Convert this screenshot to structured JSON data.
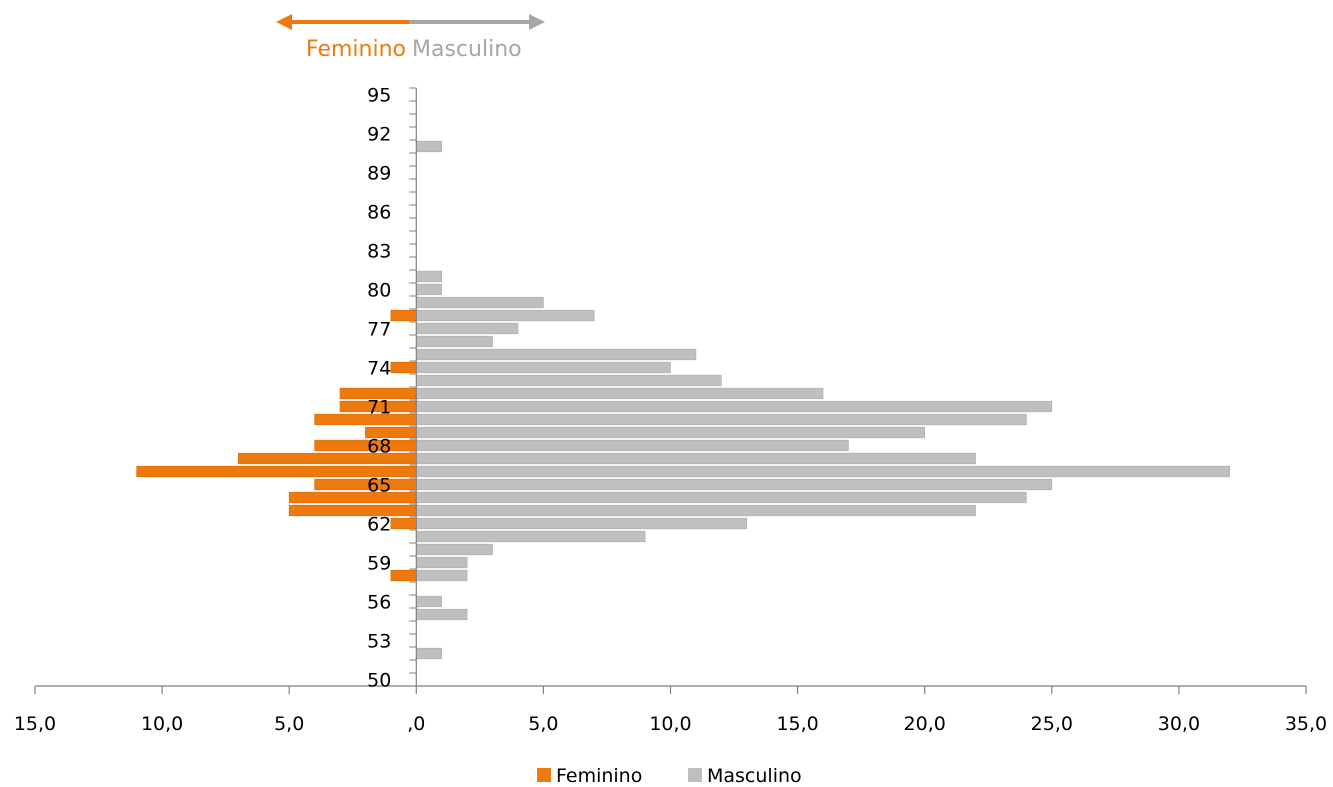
{
  "chart_data": {
    "type": "bar",
    "orientation": "horizontal-population-pyramid",
    "header": {
      "female_label": "Feminino",
      "male_label": "Masculino"
    },
    "ages": [
      95,
      94,
      93,
      92,
      91,
      90,
      89,
      88,
      87,
      86,
      85,
      84,
      83,
      82,
      81,
      80,
      79,
      78,
      77,
      76,
      75,
      74,
      73,
      72,
      71,
      70,
      69,
      68,
      67,
      66,
      65,
      64,
      63,
      62,
      61,
      60,
      59,
      58,
      57,
      56,
      55,
      54,
      53,
      52,
      51,
      50
    ],
    "series": [
      {
        "name": "Feminino",
        "color": "#EE7A0E",
        "values": [
          0,
          0,
          0,
          0,
          0,
          0,
          0,
          0,
          0,
          0,
          0,
          0,
          0,
          0,
          0,
          0,
          0,
          1,
          0,
          0,
          0,
          1,
          0,
          3,
          3,
          4,
          2,
          4,
          7,
          11,
          4,
          5,
          5,
          1,
          0,
          0,
          0,
          1,
          0,
          0,
          0,
          0,
          0,
          0,
          0,
          0
        ]
      },
      {
        "name": "Masculino",
        "color": "#BFBFBF",
        "values": [
          0,
          0,
          0,
          0,
          1,
          0,
          0,
          0,
          0,
          0,
          0,
          0,
          0,
          0,
          1,
          1,
          5,
          7,
          4,
          3,
          11,
          10,
          12,
          16,
          25,
          24,
          20,
          17,
          22,
          32,
          25,
          24,
          22,
          13,
          9,
          3,
          2,
          2,
          0,
          1,
          2,
          0,
          0,
          1,
          0,
          0
        ]
      }
    ],
    "y_tick_labels": [
      "95",
      "92",
      "89",
      "86",
      "83",
      "80",
      "77",
      "74",
      "71",
      "68",
      "65",
      "62",
      "59",
      "56",
      "53",
      "50"
    ],
    "x_tick_labels": [
      "15,0",
      "10,0",
      "5,0",
      ",0",
      "5,0",
      "10,0",
      "15,0",
      "20,0",
      "25,0",
      "30,0",
      "35,0"
    ],
    "x_range": [
      -15,
      35
    ],
    "age_range": [
      50,
      95
    ],
    "legend": {
      "position": "bottom",
      "items": [
        {
          "label": "Feminino",
          "color": "#EE7A0E"
        },
        {
          "label": "Masculino",
          "color": "#BFBFBF"
        }
      ]
    },
    "grid": false
  }
}
